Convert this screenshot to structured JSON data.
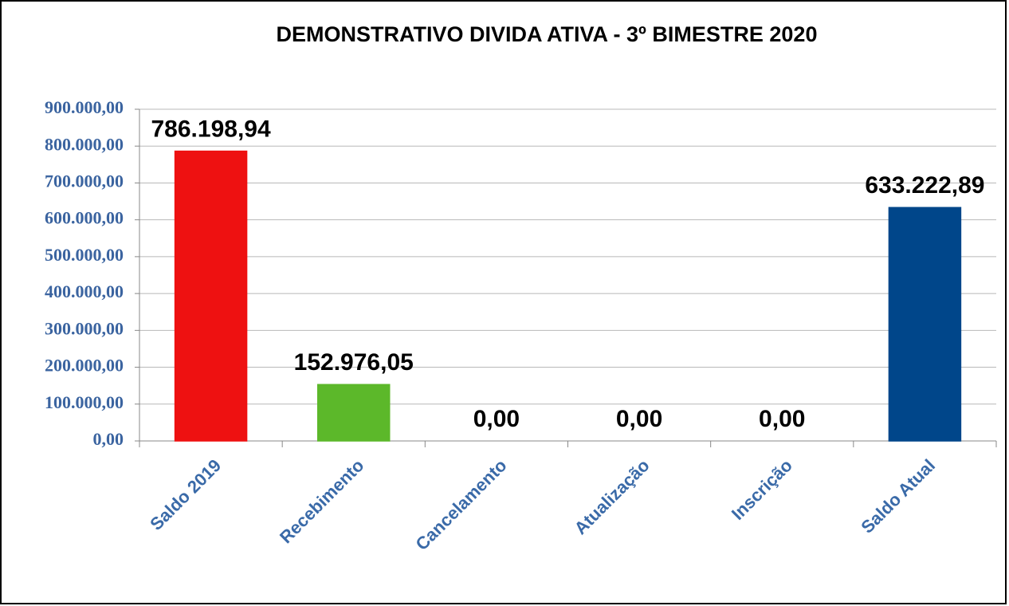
{
  "chart_data": {
    "type": "bar",
    "title": "DEMONSTRATIVO DIVIDA ATIVA - 3º BIMESTRE 2020",
    "categories": [
      "Saldo 2019",
      "Recebimento",
      "Cancelamento",
      "Atualização",
      "Inscrição",
      "Saldo Atual"
    ],
    "values": [
      786198.94,
      152976.05,
      0,
      0,
      0,
      633222.89
    ],
    "value_labels": [
      "786.198,94",
      "152.976,05",
      "0,00",
      "0,00",
      "0,00",
      "633.222,89"
    ],
    "colors": [
      "#ee1111",
      "#5cb82a",
      "#00468a",
      "#00468a",
      "#00468a",
      "#00468a"
    ],
    "ylim": [
      0,
      900000
    ],
    "yticks": [
      {
        "value": 0,
        "label": "0,00"
      },
      {
        "value": 100000,
        "label": "100.000,00"
      },
      {
        "value": 200000,
        "label": "200.000,00"
      },
      {
        "value": 300000,
        "label": "300.000,00"
      },
      {
        "value": 400000,
        "label": "400.000,00"
      },
      {
        "value": 500000,
        "label": "500.000,00"
      },
      {
        "value": 600000,
        "label": "600.000,00"
      },
      {
        "value": 700000,
        "label": "700.000,00"
      },
      {
        "value": 800000,
        "label": "800.000,00"
      },
      {
        "value": 900000,
        "label": "900.000,00"
      }
    ],
    "grid": true
  }
}
